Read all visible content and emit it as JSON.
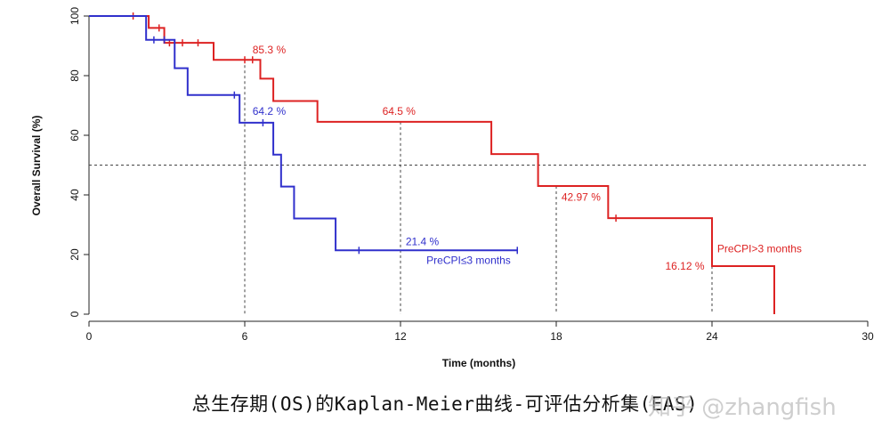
{
  "chart_data": {
    "type": "line",
    "title": "",
    "xlabel": "Time (months)",
    "ylabel": "Overall Survival (%)",
    "xlim": [
      0,
      30
    ],
    "ylim": [
      0,
      100
    ],
    "xticks": [
      "0",
      "6",
      "12",
      "18",
      "24",
      "30"
    ],
    "yticks": [
      "0",
      "20",
      "40",
      "60",
      "80",
      "100"
    ],
    "median_line": 50,
    "grid": false,
    "series": [
      {
        "name": "PreCPI>3 months",
        "color": "#dd2222",
        "steps": [
          [
            0,
            100
          ],
          [
            2.3,
            100
          ],
          [
            2.3,
            96
          ],
          [
            2.9,
            96
          ],
          [
            2.9,
            91
          ],
          [
            4.8,
            91
          ],
          [
            4.8,
            85.3
          ],
          [
            6.6,
            85.3
          ],
          [
            6.6,
            79
          ],
          [
            7.1,
            79
          ],
          [
            7.1,
            71.5
          ],
          [
            8.8,
            71.5
          ],
          [
            8.8,
            64.5
          ],
          [
            15.5,
            64.5
          ],
          [
            15.5,
            53.7
          ],
          [
            17.3,
            53.7
          ],
          [
            17.3,
            42.97
          ],
          [
            20.0,
            42.97
          ],
          [
            20.0,
            32.2
          ],
          [
            24.0,
            32.2
          ],
          [
            24.0,
            16.12
          ],
          [
            26.4,
            16.12
          ],
          [
            26.4,
            0
          ]
        ],
        "censors": [
          [
            1.7,
            100
          ],
          [
            2.7,
            96
          ],
          [
            3.1,
            91
          ],
          [
            3.6,
            91
          ],
          [
            4.2,
            91
          ],
          [
            6.0,
            85.3
          ],
          [
            6.3,
            85.3
          ],
          [
            20.3,
            32.2
          ]
        ]
      },
      {
        "name": "PreCPI≤3 months",
        "color": "#3030cc",
        "steps": [
          [
            0,
            100
          ],
          [
            2.2,
            100
          ],
          [
            2.2,
            92
          ],
          [
            3.3,
            92
          ],
          [
            3.3,
            82.5
          ],
          [
            3.8,
            82.5
          ],
          [
            3.8,
            73.5
          ],
          [
            5.8,
            73.5
          ],
          [
            5.8,
            64.2
          ],
          [
            7.1,
            64.2
          ],
          [
            7.1,
            53.5
          ],
          [
            7.4,
            53.5
          ],
          [
            7.4,
            42.8
          ],
          [
            7.9,
            42.8
          ],
          [
            7.9,
            32.1
          ],
          [
            9.5,
            32.1
          ],
          [
            9.5,
            21.4
          ],
          [
            16.5,
            21.4
          ]
        ],
        "censors": [
          [
            2.5,
            92
          ],
          [
            2.9,
            92
          ],
          [
            5.6,
            73.5
          ],
          [
            6.7,
            64.2
          ],
          [
            10.4,
            21.4
          ],
          [
            16.5,
            21.4
          ]
        ]
      }
    ],
    "annotations": [
      {
        "text": "85.3 %",
        "x": 6.3,
        "y": 87.4,
        "color": "#dd2222"
      },
      {
        "text": "64.2 %",
        "x": 6.3,
        "y": 66.8,
        "color": "#3030cc"
      },
      {
        "text": "64.5 %",
        "x": 11.3,
        "y": 66.8,
        "color": "#dd2222"
      },
      {
        "text": "42.97 %",
        "x": 18.2,
        "y": 38.0,
        "color": "#dd2222"
      },
      {
        "text": "21.4 %",
        "x": 12.2,
        "y": 23.2,
        "color": "#3030cc"
      },
      {
        "text": "PreCPI≤3 months",
        "x": 13.0,
        "y": 16.8,
        "color": "#3030cc"
      },
      {
        "text": "PreCPI>3 months",
        "x": 24.2,
        "y": 20.8,
        "color": "#dd2222"
      },
      {
        "text": "16.12 %",
        "x": 22.2,
        "y": 15.0,
        "color": "#dd2222"
      }
    ],
    "reference_lines": [
      {
        "x": 6,
        "y": 85.3
      },
      {
        "x": 12,
        "y": 64.5
      },
      {
        "x": 18,
        "y": 42.97
      },
      {
        "x": 24,
        "y": 16.12
      }
    ]
  },
  "caption": "总生存期(OS)的Kaplan-Meier曲线-可评估分析集(EAS)",
  "watermark": "知乎 @zhangfish"
}
